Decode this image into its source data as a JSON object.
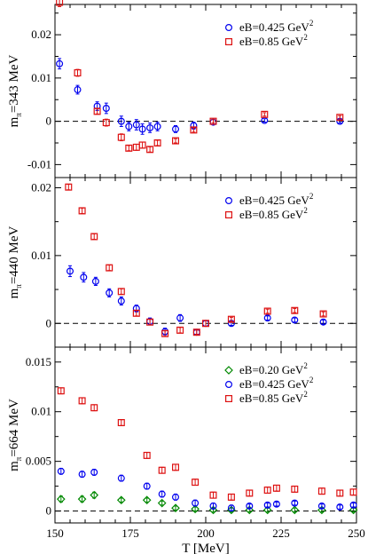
{
  "chart_data": {
    "type": "scatter",
    "shared_x": {
      "label": "T [MeV]",
      "range": [
        150,
        250
      ],
      "ticks": [
        150,
        175,
        200,
        225,
        250
      ],
      "tick_labels": [
        "150",
        "175",
        "200",
        "225",
        "250"
      ]
    },
    "legend_unit": "GeV",
    "legend_power": "2",
    "colors": {
      "eB_0_20": "#008800",
      "eB_0_425": "#0000ee",
      "eB_0_85": "#dd1111"
    },
    "panels": [
      {
        "ylabel_main": "m",
        "ylabel_sub": "π",
        "ylabel_rest": "=343 MeV",
        "ylim": [
          -0.013,
          0.027
        ],
        "ticks": [
          -0.01,
          0,
          0.01,
          0.02
        ],
        "tick_labels": [
          "-0.01",
          "0",
          "0.01",
          "0.02"
        ],
        "reference_line": 0,
        "legend_position": "top-right",
        "series": [
          {
            "name": "eB=0.425 GeV",
            "marker": "circle",
            "color": "#0000ee",
            "points": [
              [
                151.5,
                0.0133,
                0.0012
              ],
              [
                157.5,
                0.0073,
                0.001
              ],
              [
                164,
                0.0035,
                0.001
              ],
              [
                167,
                0.003,
                0.0012
              ],
              [
                172,
                0.0,
                0.0012
              ],
              [
                174.5,
                -0.0012,
                0.001
              ],
              [
                177,
                -0.0008,
                0.0012
              ],
              [
                179,
                -0.0018,
                0.0012
              ],
              [
                181.5,
                -0.0015,
                0.0011
              ],
              [
                184,
                -0.0012,
                0.001
              ],
              [
                190,
                -0.0018,
                0.0008
              ],
              [
                196,
                -0.001,
                0.0008
              ],
              [
                202.5,
                -0.0002,
                0.0006
              ],
              [
                219.5,
                0.0002,
                0.0004
              ],
              [
                244.5,
                0.0,
                0.0004
              ]
            ]
          },
          {
            "name": "eB=0.85 GeV",
            "marker": "square",
            "color": "#dd1111",
            "points": [
              [
                151.5,
                0.0275,
                0.001
              ],
              [
                157.5,
                0.0112,
                0.0008
              ],
              [
                164,
                0.0023,
                0.0006
              ],
              [
                167,
                -0.0003,
                0.0008
              ],
              [
                172,
                -0.0037,
                0.0008
              ],
              [
                174.5,
                -0.0062,
                0.0006
              ],
              [
                177,
                -0.006,
                0.0007
              ],
              [
                179,
                -0.0055,
                0.0007
              ],
              [
                181.5,
                -0.0065,
                0.0006
              ],
              [
                184,
                -0.005,
                0.0006
              ],
              [
                190,
                -0.0045,
                0.0005
              ],
              [
                196,
                -0.002,
                0.0005
              ],
              [
                202.5,
                0.0,
                0.0004
              ],
              [
                219.5,
                0.0016,
                0.0004
              ],
              [
                244.5,
                0.0009,
                0.0004
              ]
            ]
          }
        ]
      },
      {
        "ylabel_main": "m",
        "ylabel_sub": "π",
        "ylabel_rest": "=440 MeV",
        "ylim": [
          -0.0035,
          0.0215
        ],
        "ticks": [
          0,
          0.01,
          0.02
        ],
        "tick_labels": [
          "0",
          "0.01",
          "0.02"
        ],
        "reference_line": 0,
        "legend_position": "top-right",
        "series": [
          {
            "name": "eB=0.425 GeV",
            "marker": "circle",
            "color": "#0000ee",
            "points": [
              [
                155,
                0.0077,
                0.0008
              ],
              [
                159.5,
                0.0068,
                0.0007
              ],
              [
                163.5,
                0.0062,
                0.0006
              ],
              [
                168,
                0.0045,
                0.0006
              ],
              [
                172,
                0.0033,
                0.0006
              ],
              [
                177,
                0.0022,
                0.0005
              ],
              [
                181.5,
                0.0003,
                0.0005
              ],
              [
                186.5,
                -0.0012,
                0.0005
              ],
              [
                191.5,
                0.0008,
                0.0005
              ],
              [
                197,
                -0.0013,
                0.0004
              ],
              [
                200,
                0.0,
                0.0004
              ],
              [
                208.5,
                0.0,
                0.0003
              ],
              [
                220.5,
                0.0008,
                0.0003
              ],
              [
                229.5,
                0.0005,
                0.0003
              ],
              [
                239,
                0.0002,
                0.0003
              ]
            ]
          },
          {
            "name": "eB=0.85 GeV",
            "marker": "square",
            "color": "#dd1111",
            "points": [
              [
                154.5,
                0.0201,
                0.0004
              ],
              [
                159,
                0.0166,
                0.0004
              ],
              [
                163,
                0.0128,
                0.0004
              ],
              [
                168,
                0.0082,
                0.0004
              ],
              [
                172,
                0.0047,
                0.0004
              ],
              [
                177,
                0.0015,
                0.0004
              ],
              [
                181.5,
                0.0002,
                0.0004
              ],
              [
                186.5,
                -0.0015,
                0.0004
              ],
              [
                191.5,
                -0.001,
                0.0004
              ],
              [
                197,
                -0.0013,
                0.0003
              ],
              [
                200,
                0.0,
                0.0004
              ],
              [
                208.5,
                0.0006,
                0.0003
              ],
              [
                220.5,
                0.0018,
                0.0003
              ],
              [
                229.5,
                0.0019,
                0.0003
              ],
              [
                239,
                0.0014,
                0.0003
              ]
            ]
          }
        ]
      },
      {
        "ylabel_main": "m",
        "ylabel_sub": "π",
        "ylabel_rest": "=664 MeV",
        "ylim": [
          -0.0012,
          0.0165
        ],
        "ticks": [
          0,
          0.005,
          0.01,
          0.015
        ],
        "tick_labels": [
          "0",
          "0.005",
          "0.01",
          "0.015"
        ],
        "reference_line": 0,
        "legend_position": "top-right",
        "series": [
          {
            "name": "eB=0.20 GeV",
            "marker": "diamond",
            "color": "#008800",
            "points": [
              [
                152,
                0.0012,
                0.0003
              ],
              [
                159,
                0.0012,
                0.0003
              ],
              [
                163,
                0.0016,
                0.0003
              ],
              [
                172,
                0.0011,
                0.0002
              ],
              [
                180.5,
                0.0011,
                0.0002
              ],
              [
                185.5,
                0.0008,
                0.0002
              ],
              [
                190,
                0.0003,
                0.0002
              ],
              [
                196.5,
                0.0002,
                0.0002
              ],
              [
                202.5,
                0.0001,
                0.0002
              ],
              [
                208.5,
                0.0001,
                0.0002
              ],
              [
                214.5,
                0.0001,
                0.0002
              ],
              [
                220.5,
                0.0001,
                0.0002
              ],
              [
                229.5,
                0.0001,
                0.0002
              ],
              [
                238.5,
                0.0001,
                0.0002
              ],
              [
                249,
                0.0001,
                0.0002
              ]
            ]
          },
          {
            "name": "eB=0.425 GeV",
            "marker": "circle",
            "color": "#0000ee",
            "points": [
              [
                152,
                0.004,
                0.0003
              ],
              [
                159,
                0.0037,
                0.0003
              ],
              [
                163,
                0.0039,
                0.0003
              ],
              [
                172,
                0.0033,
                0.0003
              ],
              [
                180.5,
                0.0025,
                0.0003
              ],
              [
                185.5,
                0.0017,
                0.0003
              ],
              [
                190,
                0.0014,
                0.0003
              ],
              [
                196.5,
                0.0008,
                0.0003
              ],
              [
                202.5,
                0.0005,
                0.0003
              ],
              [
                208.5,
                0.0003,
                0.0003
              ],
              [
                214.5,
                0.0005,
                0.0002
              ],
              [
                220.5,
                0.0006,
                0.0002
              ],
              [
                223.5,
                0.0007,
                0.0002
              ],
              [
                229.5,
                0.0008,
                0.0002
              ],
              [
                238.5,
                0.0005,
                0.0002
              ],
              [
                244.5,
                0.0004,
                0.0002
              ],
              [
                249,
                0.0006,
                0.0002
              ]
            ]
          },
          {
            "name": "eB=0.85 GeV",
            "marker": "square",
            "color": "#dd1111",
            "points": [
              [
                152,
                0.0121,
                0.0003
              ],
              [
                159,
                0.0111,
                0.0003
              ],
              [
                163,
                0.0104,
                0.0003
              ],
              [
                172,
                0.0089,
                0.0003
              ],
              [
                180.5,
                0.0056,
                0.0003
              ],
              [
                185.5,
                0.0041,
                0.0003
              ],
              [
                190,
                0.0044,
                0.0003
              ],
              [
                196.5,
                0.0029,
                0.0003
              ],
              [
                202.5,
                0.0016,
                0.0003
              ],
              [
                208.5,
                0.0014,
                0.0003
              ],
              [
                214.5,
                0.0018,
                0.0003
              ],
              [
                220.5,
                0.0021,
                0.0003
              ],
              [
                223.5,
                0.0023,
                0.0003
              ],
              [
                229.5,
                0.0022,
                0.0003
              ],
              [
                238.5,
                0.002,
                0.0003
              ],
              [
                244.5,
                0.0018,
                0.0003
              ],
              [
                249,
                0.0019,
                0.0003
              ]
            ]
          }
        ]
      }
    ]
  }
}
